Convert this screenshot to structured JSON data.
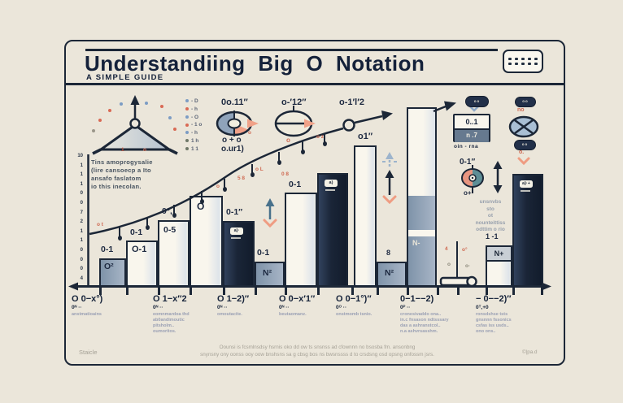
{
  "header": {
    "title": "Understandiing Big O Notation",
    "subtitle": "A SIMPLE GUIDE"
  },
  "legend": {
    "items": [
      {
        "color": "#7c9cc4",
        "label": "- D"
      },
      {
        "color": "#d96a55",
        "label": "- h"
      },
      {
        "color": "#7c9cc4",
        "label": "- O"
      },
      {
        "color": "#d96a55",
        "label": "- 1 o"
      },
      {
        "color": "#7c9cc4",
        "label": "- h"
      },
      {
        "color": "#6f7868",
        "label": "1 h"
      },
      {
        "color": "#6f7868",
        "label": "1 1"
      }
    ]
  },
  "donut_chart_icon": {
    "label": "0o.11″",
    "sub1": "o + o",
    "sub2": "o.ur1)"
  },
  "ellipse_icon": {
    "label": "o-′12″",
    "mark": "o"
  },
  "growth_labels": {
    "node_label": "o-1′l′2"
  },
  "curve_note": {
    "lines": [
      "Tins amoprogysalie",
      "(lire cansoecp a Ito",
      "ansafo faslatom",
      "io this inecolan."
    ]
  },
  "y_axis": {
    "ticks": [
      "10",
      "1",
      "1",
      "1",
      "0",
      "0",
      "7",
      "2",
      "1",
      "1",
      "0",
      "0",
      "0",
      "4"
    ]
  },
  "bars": [
    {
      "label": "O²"
    },
    {
      "label": "O-1"
    },
    {
      "label": "0-5"
    },
    {
      "label": "O"
    },
    {
      "badge": "a)·"
    },
    {
      "label": "N²"
    },
    {},
    {
      "badge": "a)"
    },
    {},
    {
      "label": "N²"
    },
    {
      "label": "N-"
    },
    {
      "label": "N+"
    },
    {
      "badge": "a)·+"
    }
  ],
  "labels": [
    "0-1",
    "0-1",
    "0°,",
    "0-1″",
    "0-1",
    "0-1",
    "o1″",
    "8",
    "1 -1"
  ],
  "red_marks": [
    "o t",
    "o",
    "5 8",
    "o L",
    "0 8",
    "o z",
    "1",
    "o",
    "o",
    "4",
    "o°",
    "o",
    "o·"
  ],
  "ratio_card": {
    "top": "0..1",
    "bottom": "n .7",
    "caption": "oin - rna"
  },
  "pills": {
    "pill1": "oo",
    "pill2": "oo",
    "pill3": "oo",
    "no_label": "no",
    "o_label": "o."
  },
  "right_note": {
    "label": "0-1″",
    "plus": "o+",
    "lines": [
      "unsnvbs",
      "sto",
      "ot",
      "nounteittiss",
      "odttim o rio"
    ]
  },
  "x_labels": [
    {
      "formula": "O 0−x°)",
      "sub": "0ᴺ ··",
      "captions": [
        "anstmatioains"
      ]
    },
    {
      "formula": "O 1−x″2",
      "sub": "0ᴺ ··",
      "captions": [
        "eomnmardoa thd",
        "ab0andimoutic",
        "pitsholm..",
        "oumoritos."
      ]
    },
    {
      "formula": "O 1−2)″",
      "sub": "0ᴺ ··",
      "captions": [
        "omoutacite."
      ]
    },
    {
      "formula": "O 0−x′1″",
      "sub": "0ᴺ ··",
      "captions": [
        "beutaomanz."
      ]
    },
    {
      "formula": "O 0−1°)″",
      "sub": "0ᴼ ··",
      "captions": [
        "onstmomb tsnio."
      ]
    },
    {
      "formula": "0−1−−2)",
      "sub": "0ᴾ ··",
      "captions": [
        "cronesivaddo ona..",
        "in.c fnsason ndtsssary",
        "das a ashranstcol..",
        "n.a ashvrsasshm."
      ]
    },
    {
      "formula": "− 0−−2)″",
      "sub": "0ᵀ,+0",
      "captions": [
        "ronsdshse tsts",
        "gnsnnn fssonics",
        "csfas iss usds..",
        "ono ons.."
      ]
    }
  ],
  "footer": {
    "left": "Staicle",
    "line1": "Oounsi is fcsmlnsdsy hsrnis oko dd ow ts snsnss ad cfownnn no bsosba fm. ansonbng",
    "line2": "snynsny ony oonss ooy oow bnshsns sa g cbsg bos ns bwsnssss d to crsdsng osd opsng onfossm jsrs.",
    "right": "©|pa.d"
  },
  "colors": {
    "background": "#ebe6da",
    "navy": "#1f2b3d",
    "bluegray": "#8fa3ba",
    "salmon": "#ef9c82",
    "red_text": "#cf6a52",
    "steel": "#48718b",
    "faded_blue": "#9db4cc",
    "teal": "#5e8e96",
    "slate": "#66798f"
  }
}
